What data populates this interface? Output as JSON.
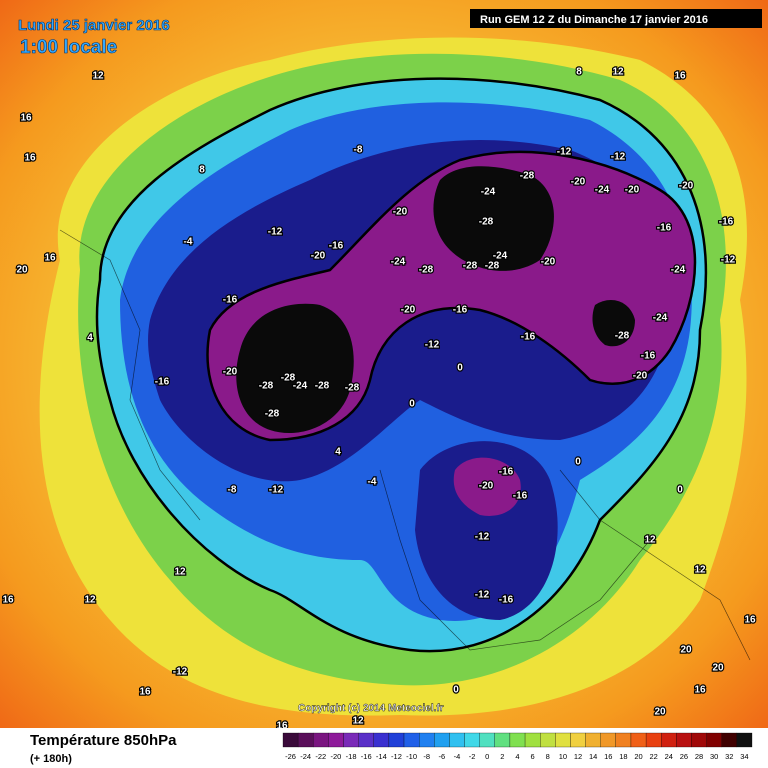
{
  "header": {
    "date": "Lundi 25 janvier 2016",
    "time": "1:00 locale",
    "run": "Run GEM 12 Z du Dimanche 17 janvier 2016"
  },
  "copyright": "Copyright (c) 2014 Meteociel.fr",
  "footer": {
    "title": "Température 850hPa",
    "step": "(+ 180h)"
  },
  "color_scale": {
    "values": [
      -26,
      -24,
      -22,
      -20,
      -18,
      -16,
      -14,
      -12,
      -10,
      -8,
      -6,
      -4,
      -2,
      0,
      2,
      4,
      6,
      8,
      10,
      12,
      14,
      16,
      18,
      20,
      22,
      24,
      26,
      28,
      30,
      32,
      34
    ],
    "colors": [
      "#3a0a3a",
      "#5a0f5a",
      "#7a1580",
      "#8e1a9a",
      "#7a2ab8",
      "#5a30c8",
      "#3a30d0",
      "#2040d8",
      "#2060e8",
      "#2080f0",
      "#20a0f0",
      "#30c0f0",
      "#40d8e8",
      "#50e0c0",
      "#60e080",
      "#80e050",
      "#a0e040",
      "#c0e040",
      "#e0e040",
      "#f0d040",
      "#f0b030",
      "#f09828",
      "#f08020",
      "#f06018",
      "#e84010",
      "#d02010",
      "#b81010",
      "#a00808",
      "#800000",
      "#400000",
      "#101010"
    ]
  },
  "contour_labels": [
    12,
    16,
    16,
    20,
    16,
    8,
    -8,
    -20,
    -12,
    -16,
    -20,
    -4,
    -16,
    -20,
    -28,
    -28,
    -24,
    -28,
    -28,
    -28,
    -16,
    -12,
    -8,
    4,
    -24,
    -28,
    -28,
    -24,
    -28,
    -28,
    -28,
    -24,
    -20,
    -12,
    -12,
    -20,
    -24,
    -20,
    -20,
    -16,
    -12,
    -16,
    -24,
    -24,
    -16,
    -20,
    -28,
    -16,
    -12,
    -16,
    -20,
    0,
    0,
    -4,
    4,
    -16,
    -20,
    -16,
    -12,
    -12,
    -16,
    0,
    0,
    12,
    12,
    16,
    20,
    20,
    16,
    20,
    12,
    16,
    12,
    -12,
    16,
    0,
    16,
    12,
    8,
    12,
    16
  ]
}
